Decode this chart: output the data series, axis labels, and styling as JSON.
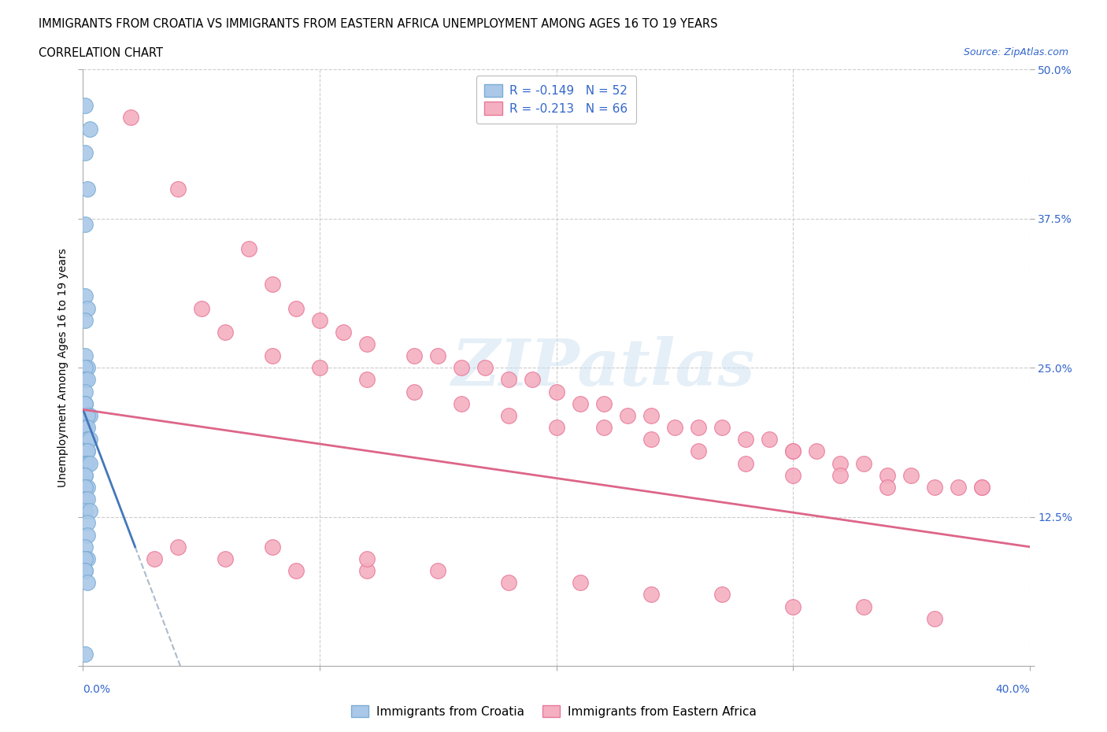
{
  "title_line1": "IMMIGRANTS FROM CROATIA VS IMMIGRANTS FROM EASTERN AFRICA UNEMPLOYMENT AMONG AGES 16 TO 19 YEARS",
  "title_line2": "CORRELATION CHART",
  "source_text": "Source: ZipAtlas.com",
  "watermark": "ZIPatlas",
  "ylabel": "Unemployment Among Ages 16 to 19 years",
  "xlim": [
    0,
    0.4
  ],
  "ylim": [
    0,
    0.5
  ],
  "x_ticks": [
    0.0,
    0.1,
    0.2,
    0.3,
    0.4
  ],
  "y_ticks": [
    0.0,
    0.125,
    0.25,
    0.375,
    0.5
  ],
  "y_tick_labels_right": [
    "",
    "12.5%",
    "25.0%",
    "37.5%",
    "50.0%"
  ],
  "croatia_color": "#aac8e8",
  "croatia_edge_color": "#7aadd4",
  "eastern_africa_color": "#f4afc0",
  "eastern_africa_edge_color": "#e8789a",
  "croatia_R": -0.149,
  "croatia_N": 52,
  "eastern_africa_R": -0.213,
  "eastern_africa_N": 66,
  "legend_R_color": "#3366cc",
  "grid_color": "#cccccc",
  "croatia_trend_color": "#4477bb",
  "eastern_africa_trend_color": "#dd6688",
  "croatia_scatter_x": [
    0.001,
    0.003,
    0.001,
    0.002,
    0.001,
    0.001,
    0.002,
    0.001,
    0.001,
    0.002,
    0.001,
    0.001,
    0.001,
    0.002,
    0.001,
    0.001,
    0.001,
    0.001,
    0.003,
    0.002,
    0.001,
    0.001,
    0.002,
    0.002,
    0.002,
    0.003,
    0.002,
    0.001,
    0.002,
    0.001,
    0.001,
    0.002,
    0.003,
    0.001,
    0.001,
    0.001,
    0.002,
    0.001,
    0.001,
    0.002,
    0.001,
    0.003,
    0.002,
    0.002,
    0.001,
    0.001,
    0.002,
    0.001,
    0.001,
    0.001,
    0.002,
    0.001
  ],
  "croatia_scatter_y": [
    0.47,
    0.45,
    0.43,
    0.4,
    0.37,
    0.31,
    0.3,
    0.29,
    0.26,
    0.25,
    0.25,
    0.24,
    0.24,
    0.24,
    0.23,
    0.22,
    0.22,
    0.22,
    0.21,
    0.21,
    0.2,
    0.2,
    0.2,
    0.19,
    0.19,
    0.19,
    0.18,
    0.18,
    0.18,
    0.17,
    0.17,
    0.17,
    0.17,
    0.16,
    0.16,
    0.15,
    0.15,
    0.15,
    0.14,
    0.14,
    0.13,
    0.13,
    0.12,
    0.11,
    0.1,
    0.09,
    0.09,
    0.09,
    0.08,
    0.08,
    0.07,
    0.01
  ],
  "eastern_africa_scatter_x": [
    0.02,
    0.04,
    0.07,
    0.08,
    0.09,
    0.1,
    0.11,
    0.12,
    0.14,
    0.15,
    0.16,
    0.17,
    0.18,
    0.19,
    0.2,
    0.21,
    0.22,
    0.23,
    0.24,
    0.25,
    0.26,
    0.27,
    0.28,
    0.29,
    0.3,
    0.3,
    0.31,
    0.32,
    0.33,
    0.34,
    0.35,
    0.36,
    0.37,
    0.38,
    0.05,
    0.06,
    0.08,
    0.1,
    0.12,
    0.14,
    0.16,
    0.18,
    0.2,
    0.22,
    0.24,
    0.26,
    0.28,
    0.3,
    0.32,
    0.34,
    0.03,
    0.06,
    0.09,
    0.12,
    0.15,
    0.18,
    0.21,
    0.24,
    0.27,
    0.3,
    0.33,
    0.36,
    0.04,
    0.08,
    0.12,
    0.38
  ],
  "eastern_africa_scatter_y": [
    0.46,
    0.4,
    0.35,
    0.32,
    0.3,
    0.29,
    0.28,
    0.27,
    0.26,
    0.26,
    0.25,
    0.25,
    0.24,
    0.24,
    0.23,
    0.22,
    0.22,
    0.21,
    0.21,
    0.2,
    0.2,
    0.2,
    0.19,
    0.19,
    0.18,
    0.18,
    0.18,
    0.17,
    0.17,
    0.16,
    0.16,
    0.15,
    0.15,
    0.15,
    0.3,
    0.28,
    0.26,
    0.25,
    0.24,
    0.23,
    0.22,
    0.21,
    0.2,
    0.2,
    0.19,
    0.18,
    0.17,
    0.16,
    0.16,
    0.15,
    0.09,
    0.09,
    0.08,
    0.08,
    0.08,
    0.07,
    0.07,
    0.06,
    0.06,
    0.05,
    0.05,
    0.04,
    0.1,
    0.1,
    0.09,
    0.15
  ]
}
